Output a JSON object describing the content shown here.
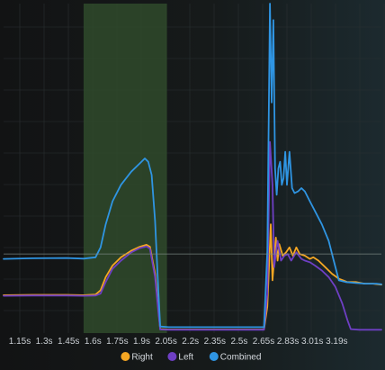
{
  "chart_data": {
    "type": "line",
    "title": "",
    "xlabel": "",
    "ylabel": "",
    "x_ticks": [
      "1.15s",
      "1.3s",
      "1.45s",
      "1.6s",
      "1.75s",
      "1.9s",
      "2.05s",
      "2.2s",
      "2.35s",
      "2.5s",
      "2.65s",
      "2.83s",
      "3.01s",
      "3.19s"
    ],
    "xlim": [
      1.03,
      3.25
    ],
    "ylim": [
      0,
      1.0
    ],
    "grid": true,
    "legend_position": "bottom-center",
    "highlight_region": {
      "x_start": 1.5,
      "x_end": 1.99,
      "color": "#2f4a2c"
    },
    "reference_line": {
      "y": 0.24,
      "color": "#7f8b86"
    },
    "series": [
      {
        "name": "Right",
        "color": "#f5a623",
        "points": [
          [
            1.03,
            0.115
          ],
          [
            1.2,
            0.116
          ],
          [
            1.4,
            0.116
          ],
          [
            1.5,
            0.115
          ],
          [
            1.57,
            0.117
          ],
          [
            1.6,
            0.13
          ],
          [
            1.63,
            0.17
          ],
          [
            1.67,
            0.205
          ],
          [
            1.72,
            0.23
          ],
          [
            1.78,
            0.25
          ],
          [
            1.83,
            0.262
          ],
          [
            1.87,
            0.268
          ],
          [
            1.89,
            0.262
          ],
          [
            1.92,
            0.18
          ],
          [
            1.94,
            0.07
          ],
          [
            1.95,
            0.012
          ],
          [
            2.0,
            0.011
          ],
          [
            2.2,
            0.011
          ],
          [
            2.4,
            0.011
          ],
          [
            2.56,
            0.011
          ],
          [
            2.58,
            0.08
          ],
          [
            2.6,
            0.33
          ],
          [
            2.61,
            0.16
          ],
          [
            2.63,
            0.29
          ],
          [
            2.64,
            0.22
          ],
          [
            2.65,
            0.27
          ],
          [
            2.67,
            0.235
          ],
          [
            2.69,
            0.245
          ],
          [
            2.71,
            0.26
          ],
          [
            2.73,
            0.235
          ],
          [
            2.75,
            0.26
          ],
          [
            2.77,
            0.24
          ],
          [
            2.8,
            0.235
          ],
          [
            2.83,
            0.225
          ],
          [
            2.85,
            0.23
          ],
          [
            2.88,
            0.22
          ],
          [
            2.92,
            0.2
          ],
          [
            2.96,
            0.18
          ],
          [
            3.0,
            0.165
          ],
          [
            3.05,
            0.155
          ],
          [
            3.1,
            0.155
          ],
          [
            3.15,
            0.15
          ],
          [
            3.2,
            0.15
          ],
          [
            3.25,
            0.147
          ]
        ]
      },
      {
        "name": "Left",
        "color": "#6e3fc4",
        "points": [
          [
            1.03,
            0.113
          ],
          [
            1.2,
            0.114
          ],
          [
            1.4,
            0.114
          ],
          [
            1.5,
            0.113
          ],
          [
            1.57,
            0.114
          ],
          [
            1.6,
            0.12
          ],
          [
            1.63,
            0.155
          ],
          [
            1.67,
            0.195
          ],
          [
            1.72,
            0.22
          ],
          [
            1.78,
            0.245
          ],
          [
            1.83,
            0.258
          ],
          [
            1.87,
            0.263
          ],
          [
            1.89,
            0.256
          ],
          [
            1.92,
            0.17
          ],
          [
            1.94,
            0.06
          ],
          [
            1.95,
            0.011
          ],
          [
            2.0,
            0.01
          ],
          [
            2.2,
            0.01
          ],
          [
            2.4,
            0.01
          ],
          [
            2.56,
            0.01
          ],
          [
            2.58,
            0.12
          ],
          [
            2.595,
            0.58
          ],
          [
            2.61,
            0.45
          ],
          [
            2.62,
            0.2
          ],
          [
            2.64,
            0.28
          ],
          [
            2.66,
            0.22
          ],
          [
            2.68,
            0.235
          ],
          [
            2.7,
            0.24
          ],
          [
            2.72,
            0.22
          ],
          [
            2.75,
            0.245
          ],
          [
            2.78,
            0.225
          ],
          [
            2.8,
            0.22
          ],
          [
            2.83,
            0.215
          ],
          [
            2.86,
            0.205
          ],
          [
            2.9,
            0.19
          ],
          [
            2.94,
            0.17
          ],
          [
            2.98,
            0.14
          ],
          [
            3.02,
            0.09
          ],
          [
            3.05,
            0.04
          ],
          [
            3.07,
            0.012
          ],
          [
            3.12,
            0.01
          ],
          [
            3.2,
            0.01
          ],
          [
            3.25,
            0.01
          ]
        ]
      },
      {
        "name": "Combined",
        "color": "#2f95e3",
        "points": [
          [
            1.03,
            0.225
          ],
          [
            1.2,
            0.227
          ],
          [
            1.4,
            0.228
          ],
          [
            1.5,
            0.226
          ],
          [
            1.57,
            0.23
          ],
          [
            1.6,
            0.26
          ],
          [
            1.63,
            0.33
          ],
          [
            1.67,
            0.4
          ],
          [
            1.72,
            0.45
          ],
          [
            1.78,
            0.49
          ],
          [
            1.83,
            0.515
          ],
          [
            1.86,
            0.53
          ],
          [
            1.88,
            0.52
          ],
          [
            1.9,
            0.48
          ],
          [
            1.92,
            0.34
          ],
          [
            1.94,
            0.12
          ],
          [
            1.95,
            0.02
          ],
          [
            2.0,
            0.018
          ],
          [
            2.2,
            0.018
          ],
          [
            2.4,
            0.018
          ],
          [
            2.56,
            0.018
          ],
          [
            2.58,
            0.25
          ],
          [
            2.595,
            1.0
          ],
          [
            2.605,
            0.7
          ],
          [
            2.615,
            0.95
          ],
          [
            2.625,
            0.5
          ],
          [
            2.635,
            0.42
          ],
          [
            2.645,
            0.5
          ],
          [
            2.655,
            0.52
          ],
          [
            2.665,
            0.45
          ],
          [
            2.675,
            0.47
          ],
          [
            2.685,
            0.55
          ],
          [
            2.695,
            0.45
          ],
          [
            2.71,
            0.55
          ],
          [
            2.725,
            0.44
          ],
          [
            2.74,
            0.425
          ],
          [
            2.76,
            0.43
          ],
          [
            2.78,
            0.44
          ],
          [
            2.8,
            0.43
          ],
          [
            2.83,
            0.4
          ],
          [
            2.86,
            0.37
          ],
          [
            2.9,
            0.33
          ],
          [
            2.94,
            0.28
          ],
          [
            2.97,
            0.22
          ],
          [
            3.0,
            0.16
          ],
          [
            3.04,
            0.155
          ],
          [
            3.1,
            0.152
          ],
          [
            3.16,
            0.15
          ],
          [
            3.22,
            0.15
          ],
          [
            3.25,
            0.148
          ]
        ]
      }
    ]
  }
}
